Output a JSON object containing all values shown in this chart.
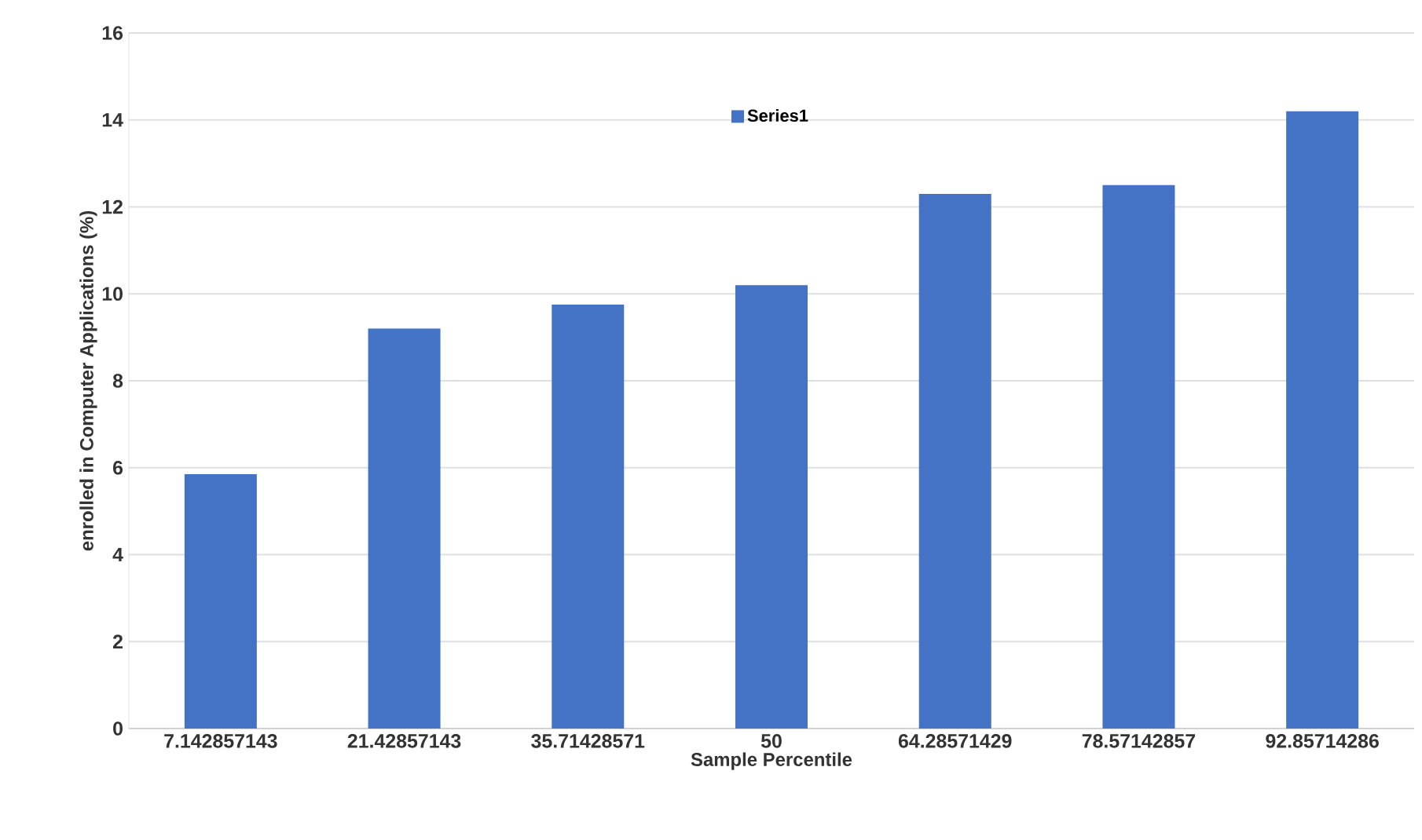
{
  "chart_data": {
    "type": "bar",
    "categories": [
      "7.142857143",
      "21.42857143",
      "35.71428571",
      "50",
      "64.28571429",
      "78.57142857",
      "92.85714286"
    ],
    "series": [
      {
        "name": "Series1",
        "color": "#4472c4",
        "values": [
          5.85,
          9.2,
          9.75,
          10.2,
          12.3,
          12.5,
          14.2
        ]
      }
    ],
    "xlabel": "Sample Percentile",
    "ylabel": "enrolled in Computer Applications (%)",
    "ylim": [
      0,
      16
    ],
    "yticks": [
      0,
      2,
      4,
      6,
      8,
      10,
      12,
      14,
      16
    ],
    "grid": "y",
    "legend": "top"
  }
}
